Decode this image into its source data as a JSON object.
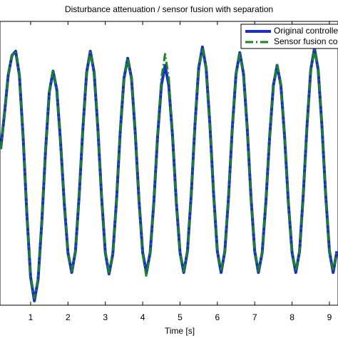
{
  "chart_data": {
    "type": "line",
    "title": "Disturbance attenuation / sensor fusion with separation",
    "x_label": "Time [s]",
    "x": [
      0.2,
      0.3,
      0.4,
      0.5,
      0.6,
      0.7,
      0.8,
      0.9,
      1.0,
      1.1,
      1.2,
      1.3,
      1.4,
      1.5,
      1.6,
      1.7,
      1.8,
      1.9,
      2.0,
      2.1,
      2.2,
      2.3,
      2.4,
      2.5,
      2.6,
      2.7,
      2.8,
      2.9,
      3.0,
      3.1,
      3.2,
      3.3,
      3.4,
      3.5,
      3.6,
      3.7,
      3.8,
      3.9,
      4.0,
      4.1,
      4.2,
      4.3,
      4.4,
      4.5,
      4.6,
      4.7,
      4.8,
      4.9,
      5.0,
      5.1,
      5.2,
      5.3,
      5.4,
      5.5,
      5.6,
      5.7,
      5.8,
      5.9,
      6.0,
      6.1,
      6.2,
      6.3,
      6.4,
      6.5,
      6.6,
      6.7,
      6.8,
      6.9,
      7.0,
      7.1,
      7.2,
      7.3,
      7.4,
      7.5,
      7.6,
      7.7,
      7.8,
      7.9,
      8.0,
      8.1,
      8.2,
      8.3,
      8.4,
      8.5,
      8.6,
      8.7,
      8.8,
      8.9,
      9.0,
      9.1,
      9.2
    ],
    "series": [
      {
        "name": "Original controlle",
        "color": "#1a2bd0",
        "values": [
          0.1,
          0.35,
          0.62,
          0.76,
          0.79,
          0.62,
          0.18,
          -0.36,
          -0.8,
          -0.97,
          -0.82,
          -0.41,
          0.09,
          0.5,
          0.65,
          0.52,
          0.16,
          -0.28,
          -0.63,
          -0.77,
          -0.62,
          -0.23,
          0.25,
          0.64,
          0.79,
          0.64,
          0.25,
          -0.24,
          -0.63,
          -0.78,
          -0.64,
          -0.26,
          0.22,
          0.6,
          0.74,
          0.6,
          0.22,
          -0.25,
          -0.63,
          -0.77,
          -0.63,
          -0.27,
          0.19,
          0.55,
          0.69,
          0.55,
          0.19,
          -0.27,
          -0.63,
          -0.77,
          -0.62,
          -0.22,
          0.27,
          0.67,
          0.82,
          0.67,
          0.27,
          -0.22,
          -0.62,
          -0.77,
          -0.62,
          -0.24,
          0.25,
          0.63,
          0.78,
          0.63,
          0.25,
          -0.24,
          -0.62,
          -0.77,
          -0.63,
          -0.27,
          0.19,
          0.55,
          0.69,
          0.55,
          0.19,
          -0.27,
          -0.63,
          -0.77,
          -0.62,
          -0.22,
          0.26,
          0.66,
          0.81,
          0.66,
          0.26,
          -0.22,
          -0.62,
          -0.77,
          -0.62
        ]
      },
      {
        "name": "Sensor fusion con",
        "color": "#16881a",
        "values": [
          0.1,
          0.35,
          0.62,
          0.76,
          0.79,
          0.62,
          0.18,
          -0.36,
          -0.79,
          -0.95,
          -0.81,
          -0.41,
          0.09,
          0.5,
          0.66,
          0.52,
          0.16,
          -0.28,
          -0.63,
          -0.76,
          -0.62,
          -0.23,
          0.25,
          0.64,
          0.78,
          0.64,
          0.25,
          -0.24,
          -0.63,
          -0.77,
          -0.64,
          -0.26,
          0.22,
          0.6,
          0.74,
          0.6,
          0.22,
          -0.25,
          -0.64,
          -0.8,
          -0.63,
          -0.27,
          0.2,
          0.6,
          0.77,
          0.6,
          0.19,
          -0.27,
          -0.63,
          -0.76,
          -0.62,
          -0.22,
          0.27,
          0.67,
          0.81,
          0.67,
          0.27,
          -0.22,
          -0.62,
          -0.76,
          -0.62,
          -0.24,
          0.25,
          0.63,
          0.77,
          0.63,
          0.25,
          -0.24,
          -0.62,
          -0.76,
          -0.63,
          -0.27,
          0.19,
          0.55,
          0.7,
          0.55,
          0.19,
          -0.27,
          -0.63,
          -0.76,
          -0.62,
          -0.22,
          0.26,
          0.66,
          0.8,
          0.66,
          0.26,
          -0.22,
          -0.62,
          -0.76,
          -0.62
        ]
      }
    ],
    "xlim": [
      0.18,
      9.23
    ],
    "xticks": [
      1,
      2,
      3,
      4,
      5,
      6,
      7,
      8,
      9
    ],
    "ylim": [
      -1,
      1
    ],
    "legend": "upper right"
  }
}
